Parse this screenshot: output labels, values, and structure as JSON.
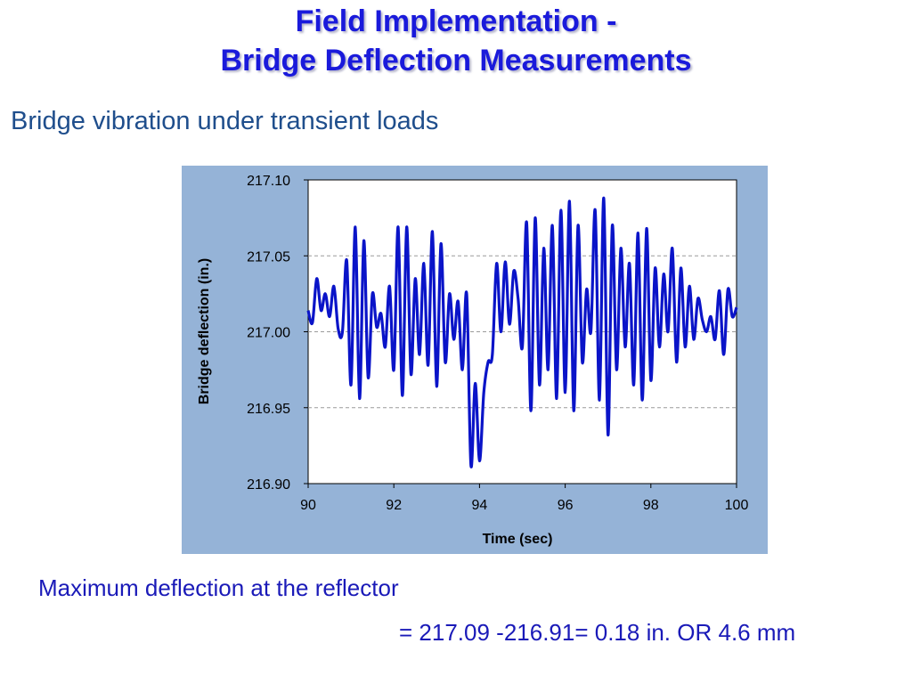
{
  "slide": {
    "title_line1": "Field Implementation -",
    "title_line2": "Bridge Deflection Measurements",
    "subtitle": "Bridge vibration under transient loads",
    "note_line1": "Maximum deflection at the reflector",
    "note_line2": "= 217.09 -216.91= 0.18 in. OR 4.6 mm"
  },
  "colors": {
    "title": "#1a1adb",
    "chart_background": "#95b3d7",
    "series_line": "#0a14c8"
  },
  "chart_data": {
    "type": "line",
    "xlabel": "Time (sec)",
    "ylabel": "Bridge deflection (in.)",
    "xlim": [
      90,
      100
    ],
    "ylim": [
      216.9,
      217.1
    ],
    "x_ticks": [
      90,
      92,
      94,
      96,
      98,
      100
    ],
    "x_tick_labels": [
      "90",
      "92",
      "94",
      "96",
      "98",
      "100"
    ],
    "y_ticks": [
      216.9,
      216.95,
      217.0,
      217.05,
      217.1
    ],
    "y_tick_labels": [
      "216.90",
      "216.95",
      "217.00",
      "217.05",
      "217.10"
    ],
    "grid": "horizontal dashed",
    "legend": "none",
    "series": [
      {
        "x": [
          90.0,
          90.1,
          90.2,
          90.3,
          90.4,
          90.5,
          90.6,
          90.7,
          90.8,
          90.9,
          91.0,
          91.1,
          91.2,
          91.3,
          91.4,
          91.5,
          91.6,
          91.7,
          91.8,
          91.9,
          92.0,
          92.1,
          92.2,
          92.3,
          92.4,
          92.5,
          92.6,
          92.7,
          92.8,
          92.9,
          93.0,
          93.1,
          93.2,
          93.3,
          93.4,
          93.5,
          93.6,
          93.7,
          93.8,
          93.9,
          94.0,
          94.1,
          94.2,
          94.3,
          94.4,
          94.5,
          94.6,
          94.7,
          94.8,
          94.9,
          95.0,
          95.1,
          95.2,
          95.3,
          95.4,
          95.5,
          95.6,
          95.7,
          95.8,
          95.9,
          96.0,
          96.1,
          96.2,
          96.3,
          96.4,
          96.5,
          96.6,
          96.7,
          96.8,
          96.9,
          97.0,
          97.1,
          97.2,
          97.3,
          97.4,
          97.5,
          97.6,
          97.7,
          97.8,
          97.9,
          98.0,
          98.1,
          98.2,
          98.3,
          98.4,
          98.5,
          98.6,
          98.7,
          98.8,
          98.9,
          99.0,
          99.1,
          99.2,
          99.3,
          99.4,
          99.5,
          99.6,
          99.7,
          99.8,
          99.9,
          100.0
        ],
        "y": [
          217.014,
          217.006,
          217.035,
          217.014,
          217.025,
          217.01,
          217.03,
          217.002,
          217.0,
          217.047,
          216.965,
          217.069,
          216.956,
          217.06,
          216.97,
          217.025,
          217.003,
          217.012,
          216.99,
          217.03,
          216.975,
          217.069,
          216.958,
          217.069,
          216.972,
          217.035,
          216.985,
          217.045,
          216.978,
          217.066,
          216.964,
          217.058,
          216.98,
          217.025,
          216.995,
          217.02,
          216.975,
          217.025,
          216.912,
          216.966,
          216.915,
          216.96,
          216.98,
          216.985,
          217.045,
          217.0,
          217.046,
          217.005,
          217.04,
          217.022,
          216.99,
          217.072,
          216.948,
          217.075,
          216.965,
          217.055,
          216.975,
          217.07,
          216.956,
          217.08,
          216.96,
          217.086,
          216.948,
          217.07,
          216.98,
          217.028,
          217.0,
          217.08,
          216.955,
          217.088,
          216.932,
          217.07,
          216.975,
          217.055,
          216.99,
          217.045,
          216.965,
          217.065,
          216.955,
          217.068,
          216.968,
          217.042,
          216.99,
          217.038,
          217.0,
          217.055,
          216.98,
          217.042,
          216.99,
          217.03,
          216.995,
          217.022,
          217.008,
          217.0,
          217.01,
          216.995,
          217.027,
          216.985,
          217.028,
          217.01,
          217.016
        ]
      }
    ]
  }
}
